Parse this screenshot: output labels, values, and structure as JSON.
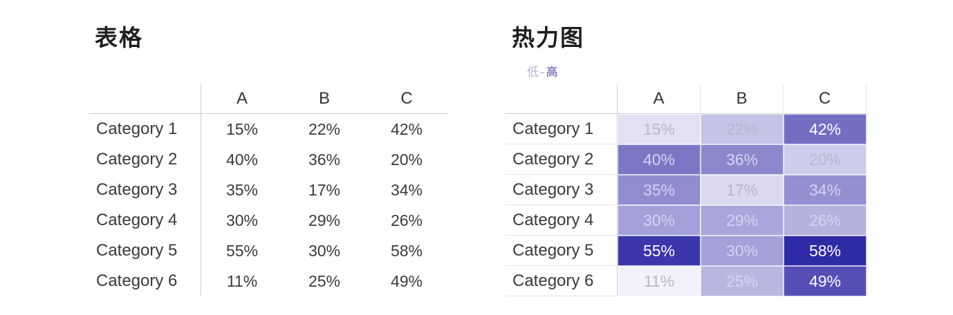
{
  "left_panel": {
    "title": "表格"
  },
  "right_panel": {
    "title": "热力图",
    "legend": {
      "low": "低",
      "dash": "–",
      "high": "高"
    }
  },
  "chart_data": [
    {
      "type": "table",
      "title": "表格",
      "columns": [
        "A",
        "B",
        "C"
      ],
      "rows": [
        {
          "label": "Category 1",
          "values": [
            "15%",
            "22%",
            "42%"
          ]
        },
        {
          "label": "Category 2",
          "values": [
            "40%",
            "36%",
            "20%"
          ]
        },
        {
          "label": "Category 3",
          "values": [
            "35%",
            "17%",
            "34%"
          ]
        },
        {
          "label": "Category 4",
          "values": [
            "30%",
            "29%",
            "26%"
          ]
        },
        {
          "label": "Category 5",
          "values": [
            "55%",
            "30%",
            "58%"
          ]
        },
        {
          "label": "Category 6",
          "values": [
            "11%",
            "25%",
            "49%"
          ]
        }
      ]
    },
    {
      "type": "heatmap",
      "title": "热力图",
      "columns": [
        "A",
        "B",
        "C"
      ],
      "rows": [
        {
          "label": "Category 1",
          "values": [
            15,
            22,
            42
          ]
        },
        {
          "label": "Category 2",
          "values": [
            40,
            36,
            20
          ]
        },
        {
          "label": "Category 3",
          "values": [
            35,
            17,
            34
          ]
        },
        {
          "label": "Category 4",
          "values": [
            30,
            29,
            26
          ]
        },
        {
          "label": "Category 5",
          "values": [
            55,
            30,
            58
          ]
        },
        {
          "label": "Category 6",
          "values": [
            11,
            25,
            49
          ]
        }
      ],
      "value_unit": "%",
      "colors": {
        "low": "#ffffff",
        "high": "#2f2aa6"
      }
    }
  ]
}
